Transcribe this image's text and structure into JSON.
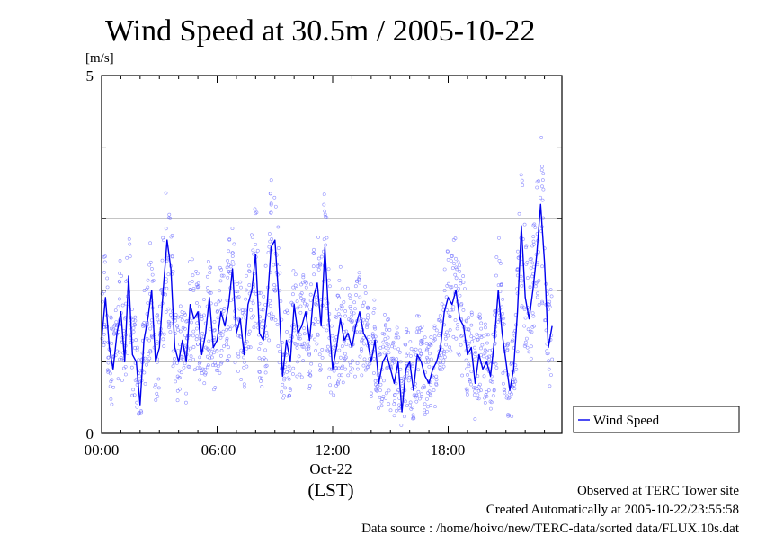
{
  "chart_data": {
    "type": "line",
    "title": "Wind Speed at 30.5m / 2005-10-22",
    "ylabel": "[m/s]",
    "ylim": [
      0,
      5
    ],
    "y_ticks": [
      "0",
      "5"
    ],
    "y_gridlines": [
      1,
      2,
      3,
      4
    ],
    "x_tick_labels": [
      "00:00",
      "06:00",
      "12:00",
      "18:00"
    ],
    "x_date_label": "Oct-22",
    "x_timezone_label": "(LST)",
    "xlim_hours": [
      0,
      23.5
    ],
    "legend": {
      "entries": [
        "Wind Speed"
      ],
      "position": "right"
    },
    "series": [
      {
        "name": "Wind Speed",
        "color": "#0000ee",
        "x_hours": [
          0.0,
          0.2,
          0.4,
          0.6,
          0.8,
          1.0,
          1.2,
          1.4,
          1.6,
          1.8,
          2.0,
          2.2,
          2.4,
          2.6,
          2.8,
          3.0,
          3.2,
          3.4,
          3.6,
          3.8,
          4.0,
          4.2,
          4.4,
          4.6,
          4.8,
          5.0,
          5.2,
          5.4,
          5.6,
          5.8,
          6.0,
          6.2,
          6.4,
          6.6,
          6.8,
          7.0,
          7.2,
          7.4,
          7.6,
          7.8,
          8.0,
          8.2,
          8.4,
          8.6,
          8.8,
          9.0,
          9.2,
          9.4,
          9.6,
          9.8,
          10.0,
          10.2,
          10.4,
          10.6,
          10.8,
          11.0,
          11.2,
          11.4,
          11.6,
          11.8,
          12.0,
          12.2,
          12.4,
          12.6,
          12.8,
          13.0,
          13.2,
          13.4,
          13.6,
          13.8,
          14.0,
          14.2,
          14.4,
          14.6,
          14.8,
          15.0,
          15.2,
          15.4,
          15.6,
          15.8,
          16.0,
          16.2,
          16.4,
          16.6,
          16.8,
          17.0,
          17.2,
          17.4,
          17.6,
          17.8,
          18.0,
          18.2,
          18.4,
          18.6,
          18.8,
          19.0,
          19.2,
          19.4,
          19.6,
          19.8,
          20.0,
          20.2,
          20.4,
          20.6,
          20.8,
          21.0,
          21.2,
          21.4,
          21.6,
          21.8,
          22.0,
          22.2,
          22.4,
          22.6,
          22.8,
          23.0,
          23.2,
          23.4
        ],
        "y": [
          1.3,
          1.9,
          1.2,
          0.9,
          1.4,
          1.7,
          1.0,
          2.2,
          1.1,
          1.0,
          0.4,
          1.3,
          1.6,
          2.0,
          1.0,
          1.2,
          2.0,
          2.7,
          2.3,
          1.2,
          1.0,
          1.3,
          1.0,
          1.8,
          1.6,
          1.7,
          1.1,
          1.4,
          1.9,
          1.2,
          1.3,
          1.7,
          1.5,
          1.8,
          2.3,
          1.4,
          1.6,
          1.1,
          1.8,
          2.0,
          2.5,
          1.4,
          1.3,
          1.8,
          2.6,
          2.7,
          1.9,
          0.8,
          1.3,
          1.0,
          1.8,
          1.4,
          1.5,
          1.7,
          1.3,
          1.9,
          2.1,
          1.5,
          2.6,
          1.6,
          0.9,
          1.2,
          1.6,
          1.3,
          1.4,
          1.2,
          1.5,
          1.7,
          1.4,
          1.3,
          1.0,
          1.3,
          0.7,
          1.0,
          1.1,
          0.9,
          0.7,
          1.0,
          0.3,
          0.9,
          1.0,
          0.6,
          1.1,
          1.0,
          0.8,
          0.7,
          0.9,
          1.0,
          1.2,
          1.7,
          1.9,
          1.8,
          2.0,
          1.6,
          1.5,
          1.1,
          1.2,
          0.7,
          1.1,
          0.9,
          1.0,
          0.8,
          1.3,
          2.0,
          1.4,
          1.0,
          0.6,
          0.9,
          1.7,
          2.9,
          1.9,
          1.6,
          2.0,
          2.5,
          3.2,
          2.4,
          1.2,
          1.5
        ]
      }
    ]
  },
  "footer": {
    "site": "Observed at TERC Tower site",
    "created": "Created Automatically at 2005-10-22/23:55:58",
    "source": "Data source : /home/hoivo/new/TERC-data/sorted  data/FLUX.10s.dat"
  }
}
